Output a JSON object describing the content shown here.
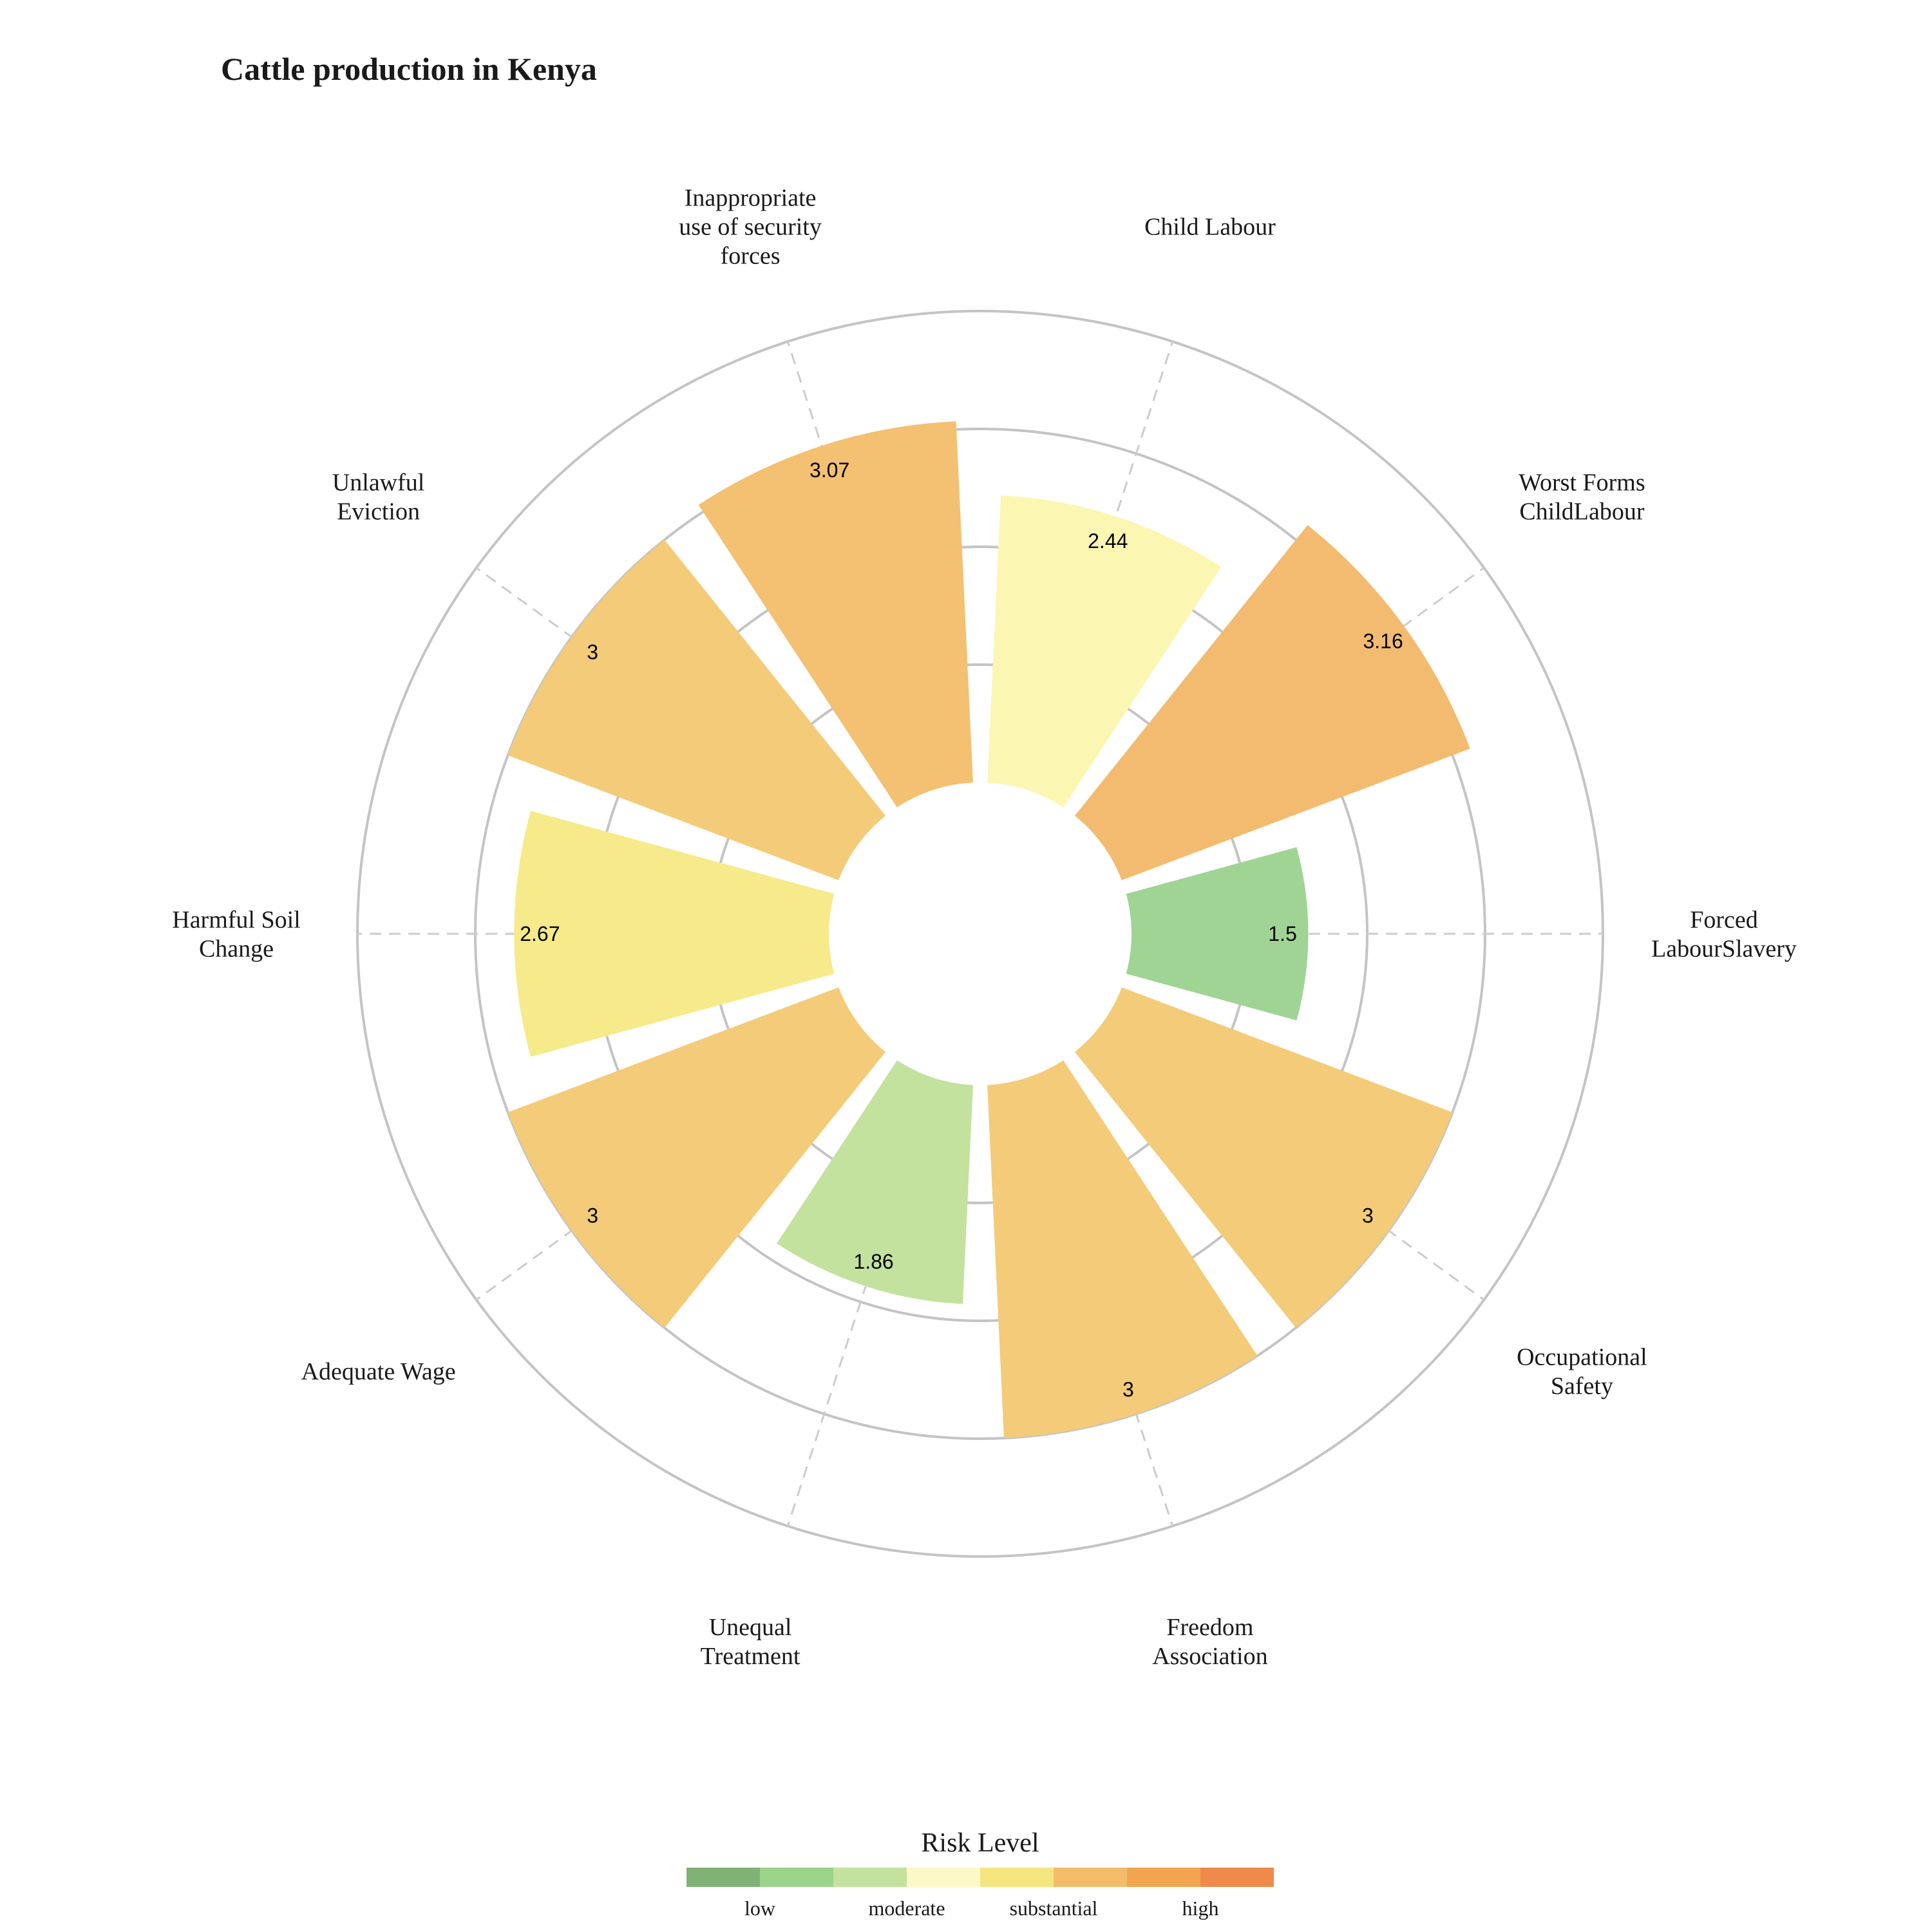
{
  "chart_data": {
    "type": "bar",
    "subtype": "polar",
    "title": "Cattle production in Kenya",
    "categories": [
      "Forced LabourSlavery",
      "Worst Forms ChildLabour",
      "Child Labour",
      "Inappropriate use of security forces",
      "Unlawful Eviction",
      "Harmful Soil Change",
      "Adequate Wage",
      "Unequal Treatment",
      "Freedom Association",
      "Occupational Safety"
    ],
    "category_label_lines": [
      [
        "Forced",
        "LabourSlavery"
      ],
      [
        "Worst Forms",
        "ChildLabour"
      ],
      [
        "Child Labour"
      ],
      [
        "Inappropriate",
        "use of security",
        "forces"
      ],
      [
        "Unlawful",
        "Eviction"
      ],
      [
        "Harmful Soil",
        "Change"
      ],
      [
        "Adequate Wage"
      ],
      [
        "Unequal",
        "Treatment"
      ],
      [
        "Freedom",
        "Association"
      ],
      [
        "Occupational",
        "Safety"
      ]
    ],
    "values": [
      1.5,
      3.16,
      2.44,
      3.07,
      3.0,
      2.67,
      3.0,
      1.86,
      3.0,
      3.0
    ],
    "value_labels": [
      "1.5",
      "3.16",
      "2.44",
      "3.07",
      "3",
      "2.67",
      "3",
      "1.86",
      "3",
      "3"
    ],
    "colors": [
      "#a0d494",
      "#f3bb70",
      "#fbf6b2",
      "#f4c072",
      "#f4cb78",
      "#f6ea8a",
      "#f4cb78",
      "#c2e29e",
      "#f4cb78",
      "#f4cb78"
    ],
    "rlim": [
      0,
      4
    ],
    "grid": true,
    "legend": {
      "title": "Risk Level",
      "placement": "bottom",
      "colors": [
        "#7fb274",
        "#9bd38a",
        "#c3e29e",
        "#fdf9c6",
        "#f4e57f",
        "#f4bc69",
        "#f3a44f",
        "#ef8a4a"
      ],
      "labels": [
        "low",
        "moderate",
        "substantial",
        "high"
      ]
    }
  }
}
